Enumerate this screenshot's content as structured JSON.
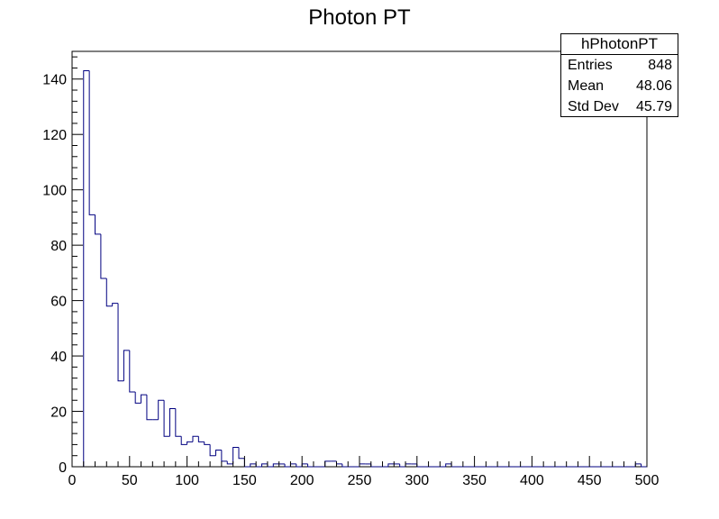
{
  "chart_data": {
    "type": "bar",
    "title": "Photon PT",
    "xlabel": "",
    "ylabel": "",
    "xlim": [
      0,
      500
    ],
    "ylim": [
      0,
      150
    ],
    "bin_width": 5,
    "x_ticks": [
      0,
      50,
      100,
      150,
      200,
      250,
      300,
      350,
      400,
      450,
      500
    ],
    "y_ticks": [
      0,
      20,
      40,
      60,
      80,
      100,
      120,
      140
    ],
    "grid": false,
    "line_color": "#000080",
    "bin_low_edges": [
      10,
      15,
      20,
      25,
      30,
      35,
      40,
      45,
      50,
      55,
      60,
      65,
      70,
      75,
      80,
      85,
      90,
      95,
      100,
      105,
      110,
      115,
      120,
      125,
      130,
      135,
      140,
      145,
      150,
      155,
      160,
      165,
      170,
      175,
      180,
      185,
      190,
      195,
      200,
      205,
      210,
      215,
      220,
      225,
      230,
      235,
      240,
      245,
      250,
      255,
      260,
      265,
      270,
      275,
      280,
      285,
      290,
      295,
      300,
      305,
      310,
      315,
      320,
      325,
      330,
      335,
      340,
      345,
      350,
      355,
      360,
      365,
      370,
      375,
      380,
      385,
      390,
      395,
      400,
      405,
      410,
      415,
      420,
      425,
      430,
      435,
      440,
      445,
      450,
      455,
      460,
      465,
      470,
      475,
      480,
      485,
      490,
      495
    ],
    "values": [
      143,
      91,
      84,
      68,
      58,
      59,
      31,
      42,
      27,
      23,
      26,
      17,
      17,
      24,
      11,
      21,
      11,
      8,
      9,
      11,
      9,
      8,
      4,
      6,
      2,
      1,
      7,
      3,
      0,
      1,
      0,
      1,
      0,
      1,
      1,
      0,
      1,
      0,
      1,
      0,
      0,
      0,
      2,
      2,
      1,
      0,
      0,
      0,
      1,
      1,
      0,
      0,
      0,
      1,
      1,
      0,
      1,
      1,
      0,
      0,
      0,
      0,
      0,
      1,
      0,
      0,
      0,
      0,
      0,
      0,
      0,
      0,
      0,
      0,
      0,
      0,
      0,
      0,
      0,
      0,
      0,
      0,
      0,
      0,
      0,
      0,
      0,
      0,
      0,
      0,
      0,
      0,
      0,
      0,
      0,
      0,
      1,
      0
    ]
  },
  "stats": {
    "name": "hPhotonPT",
    "rows": [
      {
        "label": "Entries",
        "value": "848"
      },
      {
        "label": "Mean",
        "value": "48.06"
      },
      {
        "label": "Std Dev",
        "value": "45.79"
      }
    ]
  }
}
